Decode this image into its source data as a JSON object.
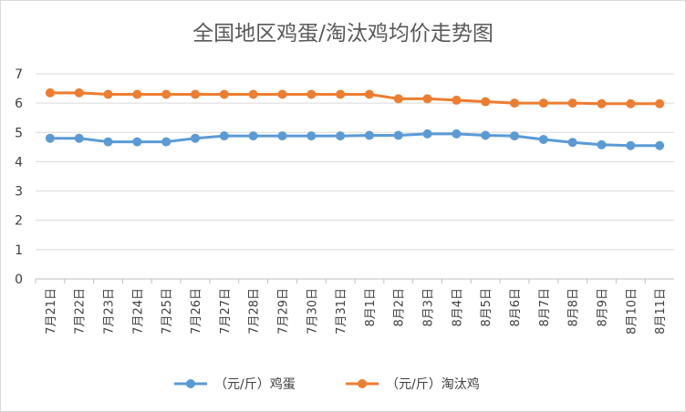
{
  "chart_data": {
    "type": "line",
    "title": "全国地区鸡蛋/淘汰鸡均价走势图",
    "xlabel": "",
    "ylabel": "",
    "categories": [
      "7月21日",
      "7月22日",
      "7月23日",
      "7月24日",
      "7月25日",
      "7月26日",
      "7月27日",
      "7月28日",
      "7月29日",
      "7月30日",
      "7月31日",
      "8月1日",
      "8月2日",
      "8月3日",
      "8月4日",
      "8月5日",
      "8月6日",
      "8月7日",
      "8月8日",
      "8月9日",
      "8月10日",
      "8月11日"
    ],
    "ylim": [
      0,
      7
    ],
    "yticks": [
      "0",
      "1",
      "2",
      "3",
      "4",
      "5",
      "6",
      "7"
    ],
    "grid": true,
    "legend_position": "bottom",
    "series": [
      {
        "name": "（元/斤）鸡蛋",
        "color": "#5b9bd5",
        "values": [
          4.8,
          4.8,
          4.68,
          4.68,
          4.68,
          4.8,
          4.88,
          4.88,
          4.88,
          4.88,
          4.88,
          4.9,
          4.9,
          4.95,
          4.95,
          4.9,
          4.88,
          4.76,
          4.66,
          4.58,
          4.55,
          4.55
        ]
      },
      {
        "name": "（元/斤）淘汰鸡",
        "color": "#ed7d31",
        "values": [
          6.35,
          6.35,
          6.3,
          6.3,
          6.3,
          6.3,
          6.3,
          6.3,
          6.3,
          6.3,
          6.3,
          6.3,
          6.15,
          6.15,
          6.1,
          6.05,
          6.0,
          6.0,
          6.0,
          5.98,
          5.98,
          5.98
        ]
      }
    ]
  }
}
